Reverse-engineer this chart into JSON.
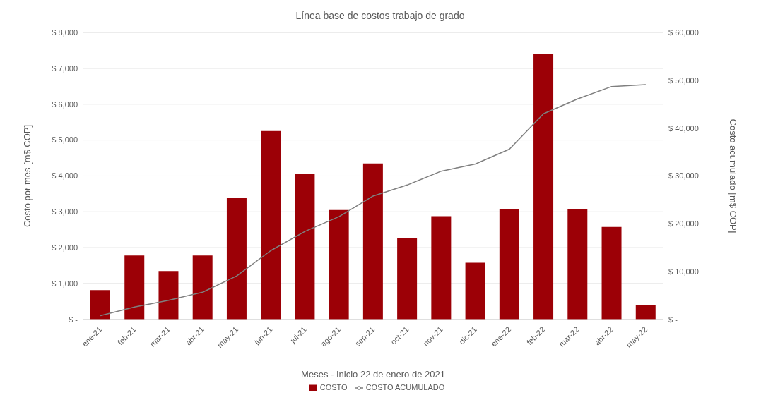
{
  "chart_data": {
    "type": "bar",
    "title": "Línea base de costos trabajo de grado",
    "xlabel": "Meses - Inicio 22 de enero de 2021",
    "ylabel": "Costo por mes [m$ COP]",
    "y2label": "Costo acumulado [m$ COP]",
    "categories": [
      "ene-21",
      "feb-21",
      "mar-21",
      "abr-21",
      "may-21",
      "jun-21",
      "jul-21",
      "ago-21",
      "sep-21",
      "oct-21",
      "nov-21",
      "dic-21",
      "ene-22",
      "feb-22",
      "mar-22",
      "abr-22",
      "may-22"
    ],
    "series": [
      {
        "name": "COSTO",
        "color": "#9c0006",
        "values": [
          820,
          1780,
          1350,
          1780,
          3380,
          5250,
          4050,
          3050,
          4350,
          2280,
          2880,
          1580,
          3070,
          7400,
          3070,
          2580,
          410
        ]
      },
      {
        "name": "COSTO ACUMULADO",
        "type": "line",
        "axis": "y2",
        "color": "#7f7f7f",
        "values": [
          800,
          2600,
          4000,
          5700,
          9100,
          14400,
          18400,
          21500,
          25800,
          28100,
          31000,
          32500,
          35600,
          43000,
          46100,
          48700,
          49100
        ]
      }
    ],
    "ylim": [
      0,
      8000
    ],
    "yticks": [
      {
        "value": 0,
        "label": "$ -"
      },
      {
        "value": 1000,
        "label": "$ 1,000"
      },
      {
        "value": 2000,
        "label": "$ 2,000"
      },
      {
        "value": 3000,
        "label": "$ 3,000"
      },
      {
        "value": 4000,
        "label": "$ 4,000"
      },
      {
        "value": 5000,
        "label": "$ 5,000"
      },
      {
        "value": 6000,
        "label": "$ 6,000"
      },
      {
        "value": 7000,
        "label": "$ 7,000"
      },
      {
        "value": 8000,
        "label": "$ 8,000"
      }
    ],
    "y2lim": [
      0,
      60000
    ],
    "y2ticks": [
      {
        "value": 0,
        "label": "$ -"
      },
      {
        "value": 10000,
        "label": "$ 10,000"
      },
      {
        "value": 20000,
        "label": "$ 20,000"
      },
      {
        "value": 30000,
        "label": "$ 30,000"
      },
      {
        "value": 40000,
        "label": "$ 40,000"
      },
      {
        "value": 50000,
        "label": "$ 50,000"
      },
      {
        "value": 60000,
        "label": "$ 60,000"
      }
    ],
    "grid": "y",
    "legend": "bottom",
    "marker": "none",
    "line_style": "solid"
  }
}
